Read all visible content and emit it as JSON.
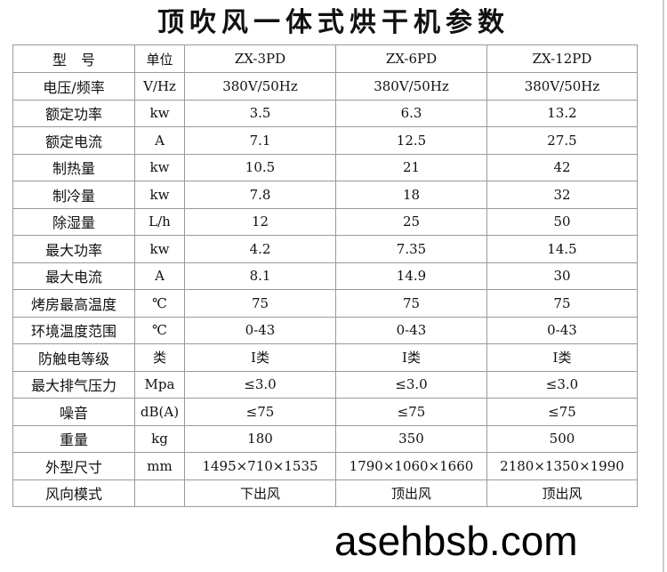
{
  "title": "顶吹风一体式烘干机参数",
  "header": [
    "型　号",
    "单位",
    "ZX-3PD",
    "ZX-6PD",
    "ZX-12PD"
  ],
  "rows": [
    [
      "电压/频率",
      "V/Hz",
      "380V/50Hz",
      "380V/50Hz",
      "380V/50Hz"
    ],
    [
      "额定功率",
      "kw",
      "3.5",
      "6.3",
      "13.2"
    ],
    [
      "额定电流",
      "A",
      "7.1",
      "12.5",
      "27.5"
    ],
    [
      "制热量",
      "kw",
      "10.5",
      "21",
      "42"
    ],
    [
      "制冷量",
      "kw",
      "7.8",
      "18",
      "32"
    ],
    [
      "除湿量",
      "L/h",
      "12",
      "25",
      "50"
    ],
    [
      "最大功率",
      "kw",
      "4.2",
      "7.35",
      "14.5"
    ],
    [
      "最大电流",
      "A",
      "8.1",
      "14.9",
      "30"
    ],
    [
      "烤房最高温度",
      "℃",
      "75",
      "75",
      "75"
    ],
    [
      "环境温度范围",
      "℃",
      "0-43",
      "0-43",
      "0-43"
    ],
    [
      "防触电等级",
      "类",
      "Ⅰ类",
      "Ⅰ类",
      "Ⅰ类"
    ],
    [
      "最大排气压力",
      "Mpa",
      "≤3.0",
      "≤3.0",
      "≤3.0"
    ],
    [
      "噪音",
      "dB(A)",
      "≤75",
      "≤75",
      "≤75"
    ],
    [
      "重量",
      "kg",
      "180",
      "350",
      "500"
    ],
    [
      "外型尺寸",
      "mm",
      "1495×710×1535",
      "1790×1060×1660",
      "2180×1350×1990"
    ],
    [
      "风向模式",
      "",
      "下出风",
      "顶出风",
      "顶出风"
    ]
  ],
  "watermark": "asehbsb.com"
}
